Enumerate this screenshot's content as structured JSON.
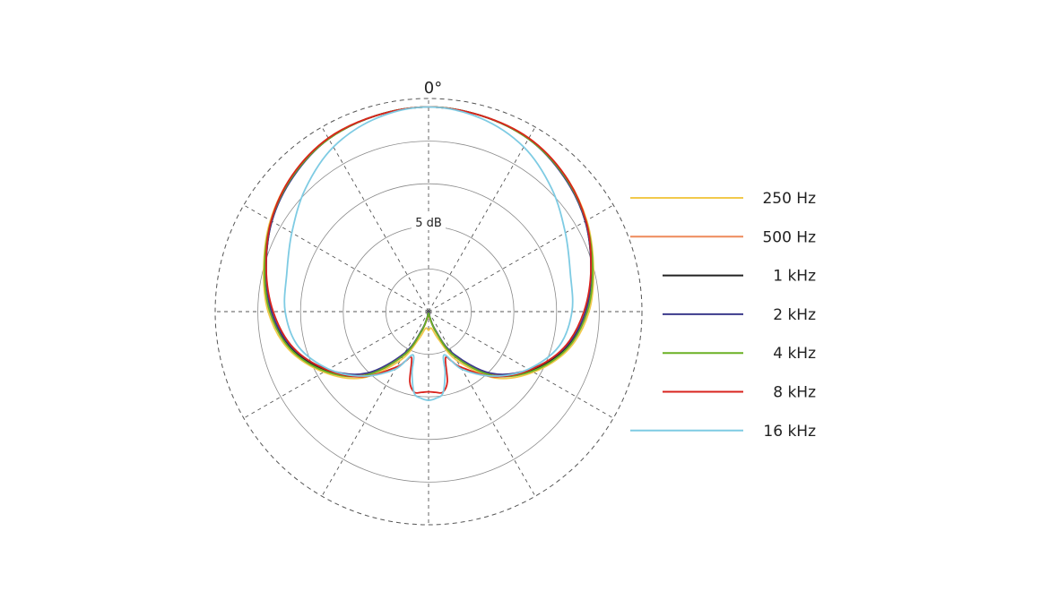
{
  "chart_data": {
    "type": "polar",
    "angle_label": "0°",
    "radial_label": "5 dB",
    "r_levels_db": [
      -25,
      -20,
      -15,
      -10,
      -5,
      0
    ],
    "angle_step_deg": 30,
    "series": [
      {
        "name": "250 Hz",
        "color": "#f2c94c",
        "points": [
          [
            0,
            -1
          ],
          [
            15,
            -1.2
          ],
          [
            30,
            -1.5
          ],
          [
            45,
            -2.4
          ],
          [
            60,
            -3.6
          ],
          [
            75,
            -5
          ],
          [
            90,
            -6.2
          ],
          [
            105,
            -8
          ],
          [
            120,
            -10.8
          ],
          [
            135,
            -14
          ],
          [
            150,
            -18.4
          ],
          [
            160,
            -21.5
          ],
          [
            170,
            -23
          ],
          [
            180,
            -22.8
          ]
        ]
      },
      {
        "name": "500 Hz",
        "color": "#ee8a5b",
        "points": [
          [
            0,
            -1
          ],
          [
            15,
            -1.2
          ],
          [
            30,
            -1.6
          ],
          [
            45,
            -2.5
          ],
          [
            60,
            -3.7
          ],
          [
            75,
            -5.2
          ],
          [
            90,
            -6.4
          ],
          [
            105,
            -8.3
          ],
          [
            120,
            -11.2
          ],
          [
            135,
            -14.6
          ],
          [
            150,
            -19.2
          ],
          [
            160,
            -22.5
          ],
          [
            170,
            -24.2
          ],
          [
            180,
            -24.5
          ]
        ]
      },
      {
        "name": "1 kHz",
        "color": "#222222",
        "points": [
          [
            0,
            -1
          ],
          [
            15,
            -1.2
          ],
          [
            30,
            -1.6
          ],
          [
            45,
            -2.5
          ],
          [
            60,
            -3.8
          ],
          [
            75,
            -5.3
          ],
          [
            90,
            -6.6
          ],
          [
            105,
            -8.4
          ],
          [
            120,
            -11.2
          ],
          [
            135,
            -14.4
          ],
          [
            150,
            -19
          ],
          [
            160,
            -22.5
          ],
          [
            170,
            -24.5
          ],
          [
            180,
            -24.8
          ]
        ]
      },
      {
        "name": "2 kHz",
        "color": "#3c3a8c",
        "points": [
          [
            0,
            -1
          ],
          [
            15,
            -1.2
          ],
          [
            30,
            -1.6
          ],
          [
            45,
            -2.6
          ],
          [
            60,
            -3.8
          ],
          [
            75,
            -5.3
          ],
          [
            90,
            -6.6
          ],
          [
            105,
            -8.5
          ],
          [
            120,
            -11.4
          ],
          [
            135,
            -14.8
          ],
          [
            150,
            -19.4
          ],
          [
            160,
            -22.8
          ],
          [
            170,
            -24.6
          ],
          [
            180,
            -24.9
          ]
        ]
      },
      {
        "name": "4 kHz",
        "color": "#6ab023",
        "points": [
          [
            0,
            -1
          ],
          [
            15,
            -1.2
          ],
          [
            30,
            -1.6
          ],
          [
            45,
            -2.5
          ],
          [
            60,
            -3.7
          ],
          [
            75,
            -5.1
          ],
          [
            90,
            -6.4
          ],
          [
            105,
            -8.2
          ],
          [
            120,
            -11
          ],
          [
            135,
            -14.4
          ],
          [
            150,
            -19
          ],
          [
            160,
            -22.5
          ],
          [
            170,
            -24.5
          ],
          [
            180,
            -24.8
          ]
        ]
      },
      {
        "name": "8 kHz",
        "color": "#d9231d",
        "points": [
          [
            0,
            -1
          ],
          [
            15,
            -1.2
          ],
          [
            30,
            -1.5
          ],
          [
            45,
            -2.4
          ],
          [
            60,
            -3.7
          ],
          [
            75,
            -5.3
          ],
          [
            90,
            -6.8
          ],
          [
            105,
            -8.6
          ],
          [
            120,
            -11.3
          ],
          [
            135,
            -14.2
          ],
          [
            150,
            -17.5
          ],
          [
            155,
            -18.6
          ],
          [
            160,
            -19.2
          ],
          [
            165,
            -16.5
          ],
          [
            170,
            -15.4
          ],
          [
            175,
            -15.5
          ],
          [
            180,
            -15.6
          ]
        ]
      },
      {
        "name": "16 kHz",
        "color": "#7ecbe3",
        "points": [
          [
            0,
            -1
          ],
          [
            15,
            -1.5
          ],
          [
            30,
            -2.7
          ],
          [
            45,
            -4.6
          ],
          [
            60,
            -6.5
          ],
          [
            75,
            -7.8
          ],
          [
            90,
            -8.2
          ],
          [
            105,
            -9.2
          ],
          [
            120,
            -11.5
          ],
          [
            135,
            -14.3
          ],
          [
            150,
            -17.2
          ],
          [
            160,
            -19.6
          ],
          [
            165,
            -17.5
          ],
          [
            170,
            -15.3
          ],
          [
            175,
            -14.8
          ],
          [
            180,
            -14.6
          ]
        ]
      }
    ]
  }
}
